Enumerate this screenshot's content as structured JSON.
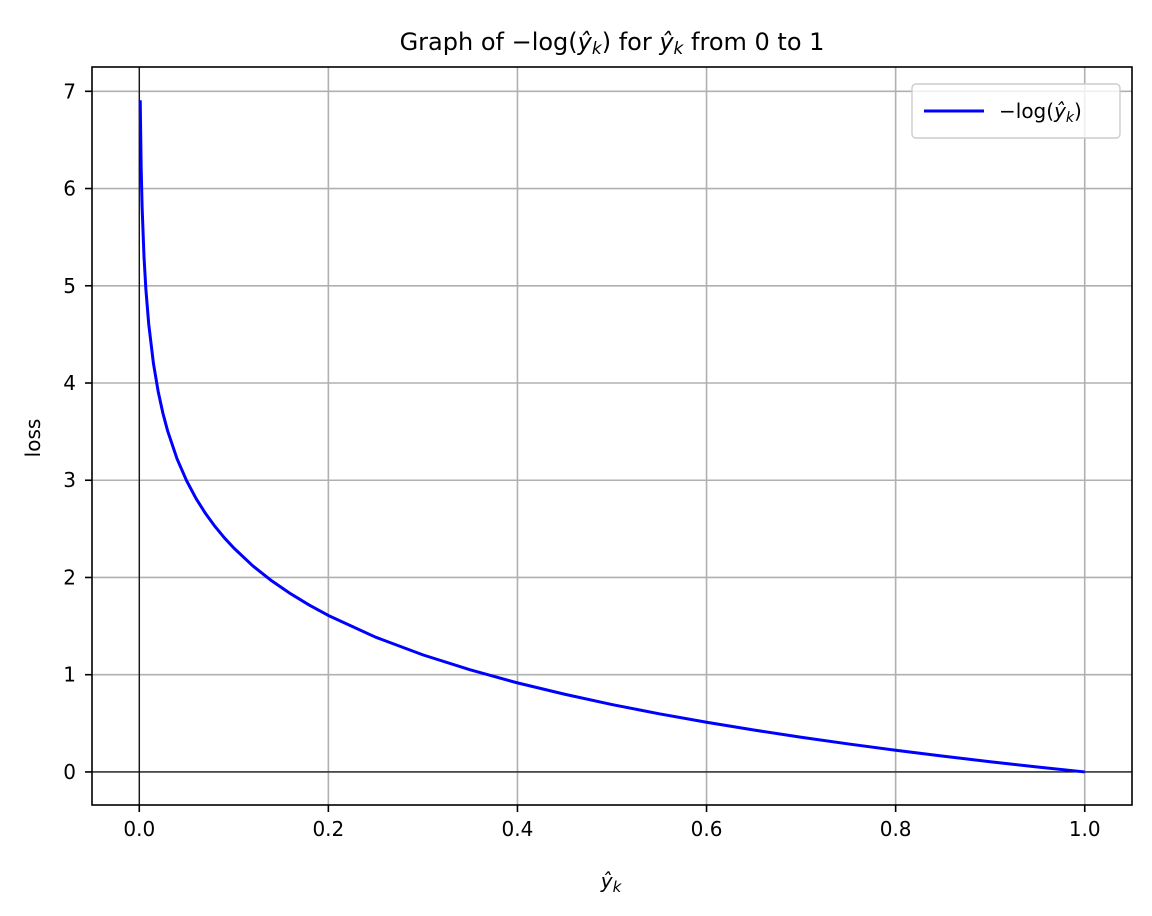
{
  "chart_data": {
    "type": "line",
    "title": "Graph of −log(ŷₖ) for ŷₖ from 0 to 1",
    "title_parts": {
      "prefix": "Graph of −log(",
      "var_base": "ŷ",
      "var_sub": "k",
      "mid": ") for ",
      "suffix": " from 0 to 1"
    },
    "xlabel": "ŷₖ",
    "xlabel_parts": {
      "var_base": "ŷ",
      "var_sub": "k"
    },
    "ylabel": "loss",
    "xlim": [
      -0.05,
      1.05
    ],
    "ylim": [
      -0.34,
      7.25
    ],
    "xticks": [
      0.0,
      0.2,
      0.4,
      0.6,
      0.8,
      1.0
    ],
    "xtick_labels": [
      "0.0",
      "0.2",
      "0.4",
      "0.6",
      "0.8",
      "1.0"
    ],
    "yticks": [
      0,
      1,
      2,
      3,
      4,
      5,
      6,
      7
    ],
    "ytick_labels": [
      "0",
      "1",
      "2",
      "3",
      "4",
      "5",
      "6",
      "7"
    ],
    "grid": true,
    "reference_lines": {
      "x": 0,
      "y": 0
    },
    "legend": {
      "placement": "top-right",
      "entries": [
        {
          "label": "−log(ŷₖ)",
          "label_parts": {
            "prefix": "−log(",
            "var_base": "ŷ",
            "var_sub": "k",
            "suffix": ")"
          },
          "color": "#0000ff"
        }
      ]
    },
    "series": [
      {
        "name": "−log(ŷₖ)",
        "color": "#0000ff",
        "function": "-log(x)",
        "x": [
          0.001,
          0.002,
          0.003,
          0.005,
          0.007,
          0.01,
          0.015,
          0.02,
          0.025,
          0.03,
          0.04,
          0.05,
          0.06,
          0.07,
          0.08,
          0.09,
          0.1,
          0.12,
          0.14,
          0.16,
          0.18,
          0.2,
          0.25,
          0.3,
          0.35,
          0.4,
          0.45,
          0.5,
          0.55,
          0.6,
          0.65,
          0.7,
          0.75,
          0.8,
          0.85,
          0.9,
          0.95,
          1.0
        ],
        "y": [
          6.908,
          6.215,
          5.809,
          5.298,
          4.962,
          4.605,
          4.2,
          3.912,
          3.689,
          3.507,
          3.219,
          2.996,
          2.813,
          2.659,
          2.526,
          2.408,
          2.303,
          2.12,
          1.966,
          1.833,
          1.715,
          1.609,
          1.386,
          1.204,
          1.05,
          0.916,
          0.799,
          0.693,
          0.598,
          0.511,
          0.431,
          0.357,
          0.288,
          0.223,
          0.163,
          0.105,
          0.051,
          0.0
        ]
      }
    ]
  }
}
